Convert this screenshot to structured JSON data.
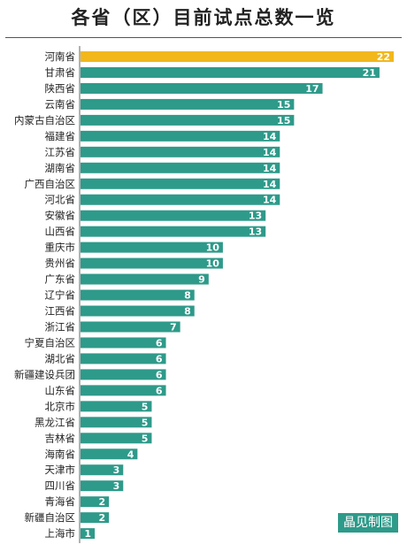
{
  "chart_data": {
    "type": "bar",
    "orientation": "horizontal",
    "title": "各省（区）目前试点总数一览",
    "credit": "晶见制图",
    "colors": {
      "default": "#2e9a8a",
      "highlight": "#f2b71b"
    },
    "highlight_index": 0,
    "xlim": [
      0,
      22
    ],
    "categories": [
      "河南省",
      "甘肃省",
      "陕西省",
      "云南省",
      "内蒙古自治区",
      "福建省",
      "江苏省",
      "湖南省",
      "广西自治区",
      "河北省",
      "安徽省",
      "山西省",
      "重庆市",
      "贵州省",
      "广东省",
      "辽宁省",
      "江西省",
      "浙江省",
      "宁夏自治区",
      "湖北省",
      "新疆建设兵团",
      "山东省",
      "北京市",
      "黑龙江省",
      "吉林省",
      "海南省",
      "天津市",
      "四川省",
      "青海省",
      "新疆自治区",
      "上海市"
    ],
    "values": [
      22,
      21,
      17,
      15,
      15,
      14,
      14,
      14,
      14,
      14,
      13,
      13,
      10,
      10,
      9,
      8,
      8,
      7,
      6,
      6,
      6,
      6,
      5,
      5,
      5,
      4,
      3,
      3,
      2,
      2,
      1
    ]
  }
}
